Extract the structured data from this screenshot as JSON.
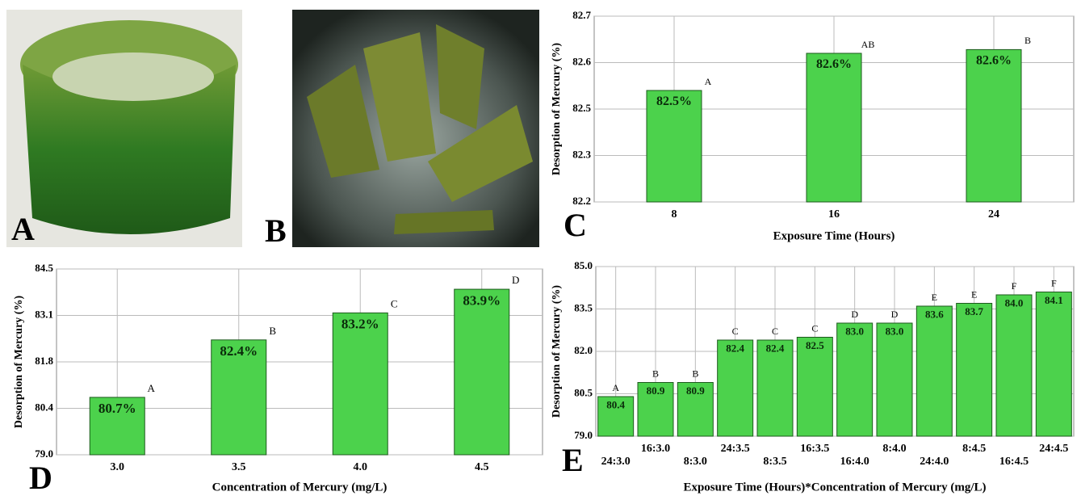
{
  "panels": [
    {
      "label": "A"
    },
    {
      "label": "B"
    }
  ],
  "chart_data": [
    {
      "type": "bar",
      "panel_label": "C",
      "x_label": "Exposure Time (Hours)",
      "y_label": "Desorption of Mercury (%)",
      "categories": [
        "8",
        "16",
        "24"
      ],
      "values": [
        82.5,
        82.6,
        82.61
      ],
      "value_labels": [
        "82.5%",
        "82.6%",
        "82.6%"
      ],
      "letters": [
        "A",
        "AB",
        "B"
      ],
      "color": "#4cd24c",
      "grid": true,
      "ylim": [
        82.2,
        82.7
      ],
      "yticks": [
        82.2,
        {
          "value": 82.325,
          "label": "82.3"
        },
        {
          "value": 82.45,
          "label": "82.5"
        },
        {
          "value": 82.575,
          "label": "82.6"
        },
        82.7
      ]
    },
    {
      "type": "bar",
      "panel_label": "D",
      "x_label": "Concentration of Mercury (mg/L)",
      "y_label": "Desorption of Mercury (%)",
      "categories": [
        "3.0",
        "3.5",
        "4.0",
        "4.5"
      ],
      "values": [
        80.7,
        82.4,
        83.2,
        83.9
      ],
      "value_labels": [
        "80.7%",
        "82.4%",
        "83.2%",
        "83.9%"
      ],
      "letters": [
        "A",
        "B",
        "C",
        "D"
      ],
      "color": "#4cd24c",
      "grid": true,
      "ylim": [
        79.0,
        84.5
      ],
      "yticks": [
        {
          "value": 79.0,
          "label": "79.0"
        },
        {
          "value": 80.375,
          "label": "80.4"
        },
        {
          "value": 81.75,
          "label": "81.8"
        },
        {
          "value": 83.125,
          "label": "83.1"
        },
        84.5
      ]
    },
    {
      "type": "bar",
      "panel_label": "E",
      "x_label": "Exposure Time (Hours)*Concentration of Mercury (mg/L)",
      "y_label": "Desorption of Mercury (%)",
      "categories": [
        "24:3.0",
        "16:3.0",
        "8:3.0",
        "24:3.5",
        "8:3.5",
        "16:3.5",
        "16:4.0",
        "8:4.0",
        "24:4.0",
        "8:4.5",
        "16:4.5",
        "24:4.5"
      ],
      "values": [
        80.4,
        80.9,
        80.9,
        82.4,
        82.4,
        82.5,
        83.0,
        83.0,
        83.6,
        83.7,
        84.0,
        84.1
      ],
      "value_labels": [
        "80.4",
        "80.9",
        "80.9",
        "82.4",
        "82.4",
        "82.5",
        "83.0",
        "83.0",
        "83.6",
        "83.7",
        "84.0",
        "84.1"
      ],
      "letters": [
        "A",
        "B",
        "B",
        "C",
        "C",
        "C",
        "D",
        "D",
        "E",
        "E",
        "F",
        "F"
      ],
      "color": "#4cd24c",
      "grid": true,
      "ylim": [
        79.0,
        85.0
      ],
      "yticks": [
        {
          "value": 79.0,
          "label": "79.0"
        },
        80.5,
        {
          "value": 82.0,
          "label": "82.0"
        },
        83.5,
        {
          "value": 85.0,
          "label": "85.0"
        }
      ]
    }
  ]
}
